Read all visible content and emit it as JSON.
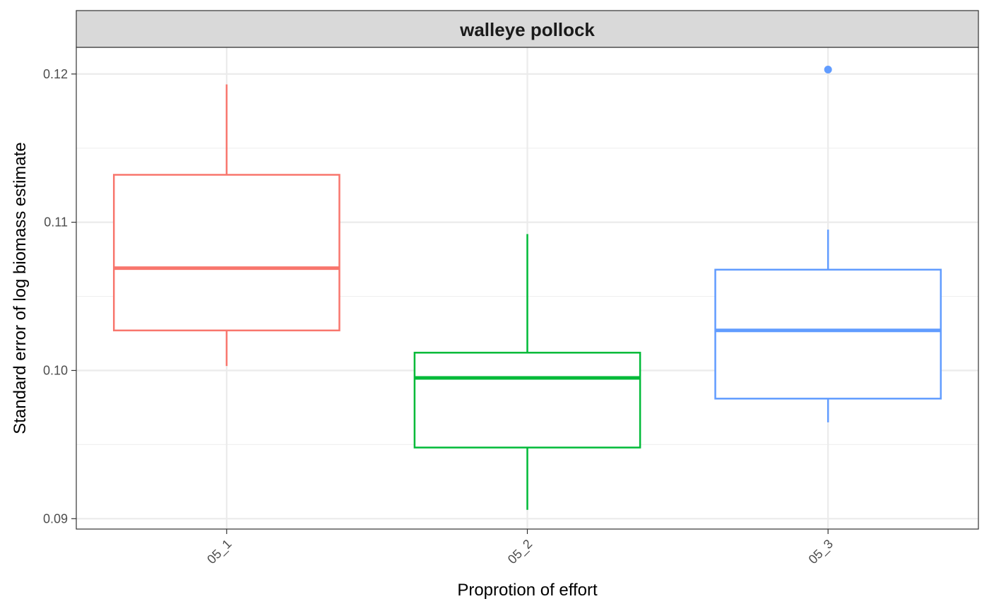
{
  "chart_data": {
    "type": "boxplot",
    "facet": "walleye pollock",
    "xlabel": "Proprotion of effort",
    "ylabel": "Standard error of log biomass estimate",
    "ylim": [
      0.0893,
      0.1218
    ],
    "y_ticks": [
      0.09,
      0.1,
      0.11,
      0.12
    ],
    "y_tick_labels": [
      "0.09",
      "0.10",
      "0.11",
      "0.12"
    ],
    "y_minor_ticks": [
      0.095,
      0.105,
      0.115
    ],
    "grid": true,
    "legend": "none",
    "categories": [
      "05_1",
      "05_2",
      "05_3"
    ],
    "boxes": [
      {
        "category": "05_1",
        "color": "#F8766D",
        "whisker_low": 0.1003,
        "q1": 0.1027,
        "median": 0.1069,
        "q3": 0.1132,
        "whisker_high": 0.1193,
        "outliers": []
      },
      {
        "category": "05_2",
        "color": "#00BA38",
        "whisker_low": 0.0906,
        "q1": 0.0948,
        "median": 0.0995,
        "q3": 0.1012,
        "whisker_high": 0.1092,
        "outliers": []
      },
      {
        "category": "05_3",
        "color": "#619CFF",
        "whisker_low": 0.0965,
        "q1": 0.0981,
        "median": 0.1027,
        "q3": 0.1068,
        "whisker_high": 0.1095,
        "outliers": [
          0.1203
        ]
      }
    ]
  }
}
